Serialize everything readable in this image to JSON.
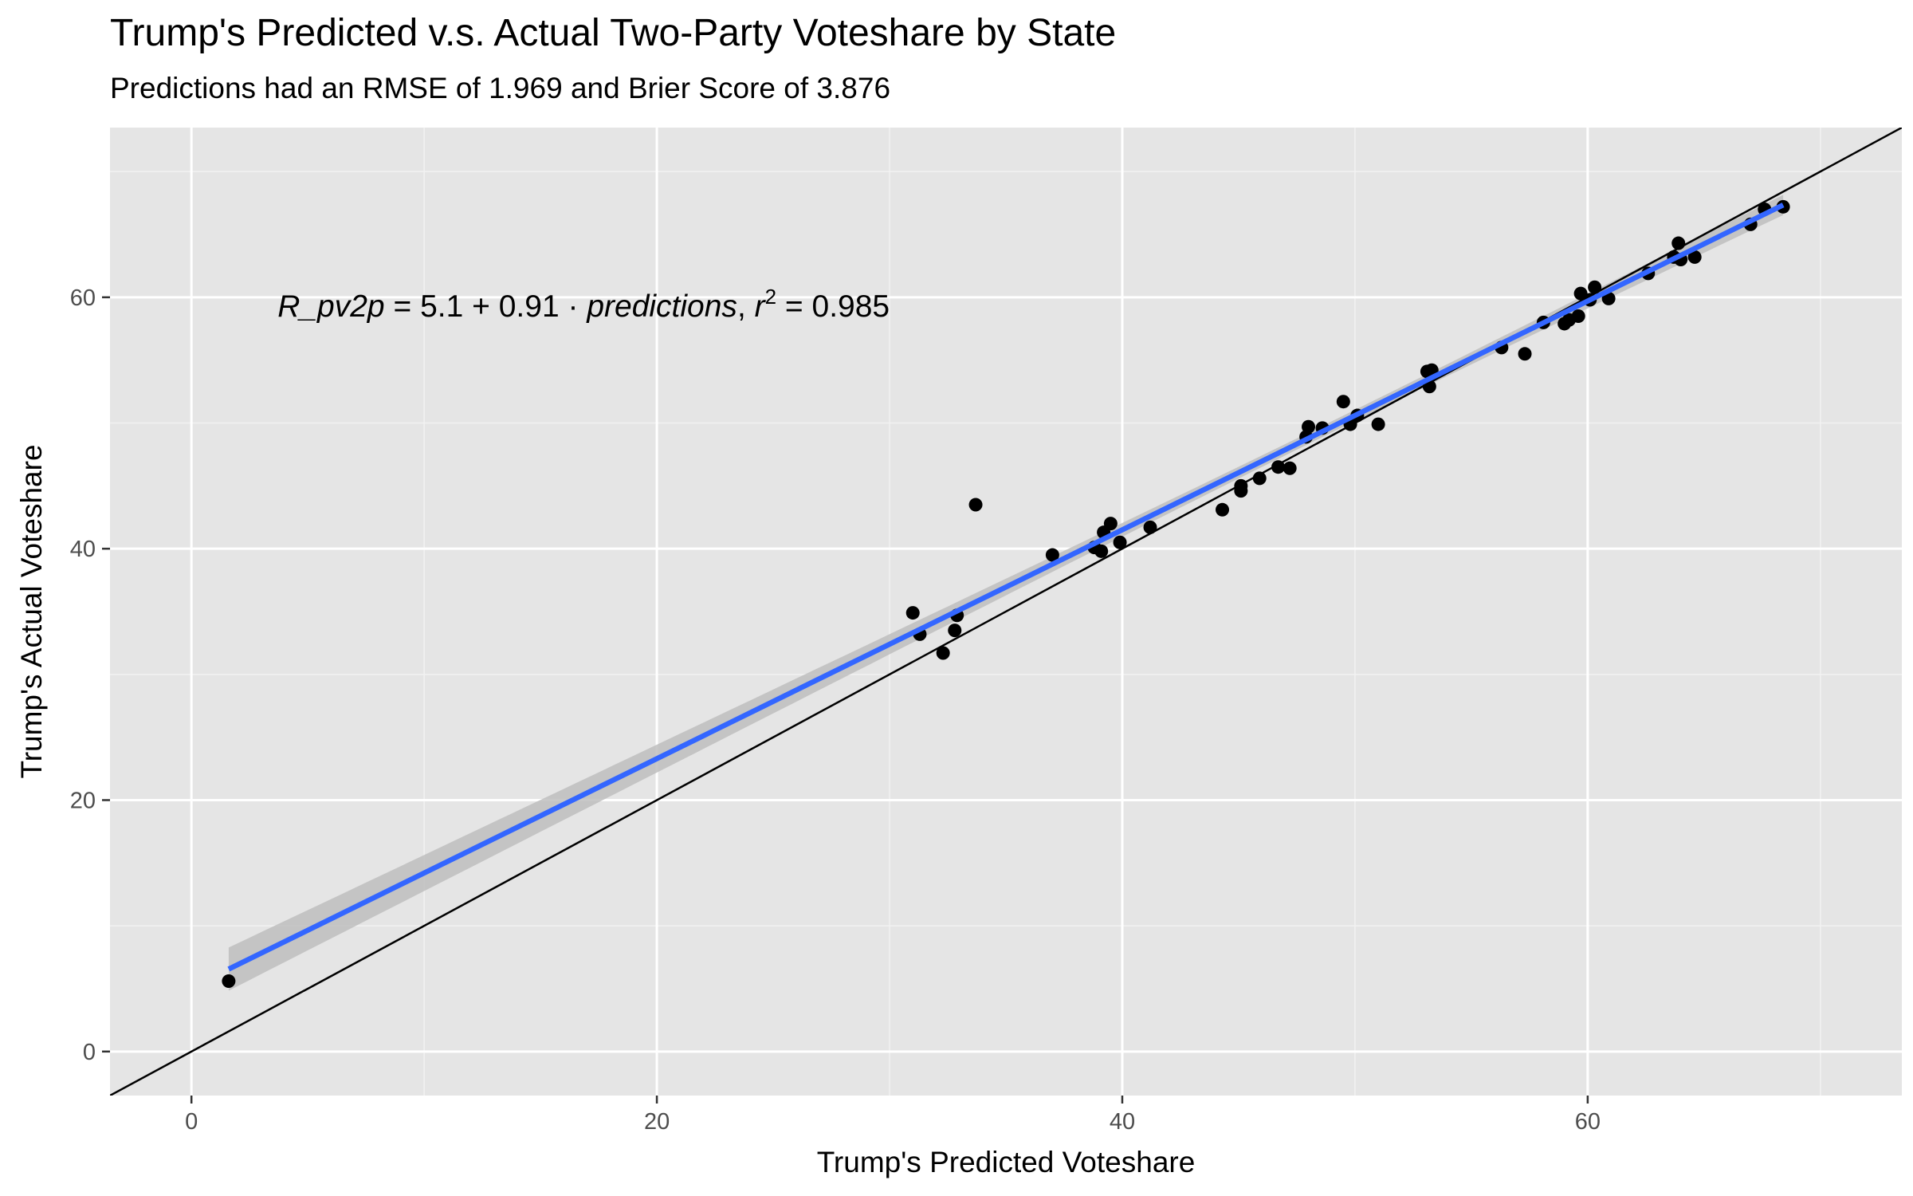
{
  "chart_data": {
    "type": "scatter",
    "title": "Trump's Predicted v.s. Actual Two-Party Voteshare by State",
    "subtitle": "Predictions had an RMSE of 1.969 and Brier Score of 3.876",
    "xlabel": "Trump's Predicted Voteshare",
    "ylabel": "Trump's Actual Voteshare",
    "xlim": [
      -3.5,
      73.5
    ],
    "ylim": [
      -3.5,
      73.5
    ],
    "x_ticks": [
      0,
      20,
      40,
      60
    ],
    "y_ticks": [
      0,
      20,
      40,
      60
    ],
    "x_tick_labels": [
      "0",
      "20",
      "40",
      "60"
    ],
    "y_tick_labels": [
      "0",
      "20",
      "40",
      "60"
    ],
    "grid": true,
    "background": "#e5e5e5",
    "points": [
      [
        1.6,
        5.6
      ],
      [
        31.0,
        34.9
      ],
      [
        31.3,
        33.2
      ],
      [
        32.3,
        31.7
      ],
      [
        32.8,
        33.5
      ],
      [
        32.9,
        34.7
      ],
      [
        33.7,
        43.5
      ],
      [
        37.0,
        39.5
      ],
      [
        38.8,
        40.1
      ],
      [
        39.1,
        39.8
      ],
      [
        39.2,
        41.3
      ],
      [
        39.5,
        42.0
      ],
      [
        39.9,
        40.5
      ],
      [
        41.2,
        41.7
      ],
      [
        44.3,
        43.1
      ],
      [
        45.1,
        44.6
      ],
      [
        45.1,
        45.0
      ],
      [
        45.9,
        45.6
      ],
      [
        46.7,
        46.5
      ],
      [
        47.2,
        46.4
      ],
      [
        47.9,
        48.9
      ],
      [
        48.0,
        49.7
      ],
      [
        48.6,
        49.6
      ],
      [
        49.5,
        51.7
      ],
      [
        49.8,
        49.9
      ],
      [
        50.1,
        50.6
      ],
      [
        51.0,
        49.9
      ],
      [
        53.1,
        54.1
      ],
      [
        53.2,
        52.9
      ],
      [
        53.3,
        54.2
      ],
      [
        56.3,
        56.0
      ],
      [
        57.3,
        55.5
      ],
      [
        58.1,
        58.0
      ],
      [
        59.0,
        57.9
      ],
      [
        59.2,
        58.2
      ],
      [
        59.6,
        58.5
      ],
      [
        59.7,
        60.3
      ],
      [
        60.1,
        59.8
      ],
      [
        60.3,
        60.8
      ],
      [
        60.9,
        59.9
      ],
      [
        62.6,
        61.9
      ],
      [
        63.7,
        63.2
      ],
      [
        63.9,
        64.3
      ],
      [
        64.0,
        63.0
      ],
      [
        64.6,
        63.2
      ],
      [
        67.0,
        65.8
      ],
      [
        67.6,
        67.0
      ],
      [
        68.4,
        67.2
      ]
    ],
    "reference_line": {
      "name": "y = x",
      "color": "#000000"
    },
    "fit_line": {
      "intercept": 5.1,
      "slope": 0.91,
      "color": "#3366ff",
      "x_range": [
        1.6,
        68.4
      ],
      "band_color": "#bebebe"
    },
    "annotation": {
      "lhs": "R_pv2p",
      "equals": " = ",
      "intercept_text": "5.1 + 0.91",
      "dot": " · ",
      "predictor": "predictions",
      "comma": ",  ",
      "r_symbol": "r",
      "superscript": "2",
      "r2_text": " = 0.985",
      "x": 3.7,
      "y": 59.3
    }
  }
}
